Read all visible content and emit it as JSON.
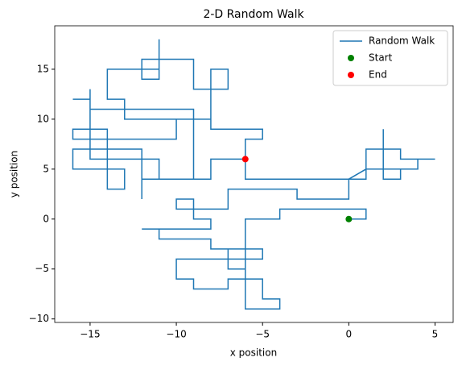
{
  "chart_data": {
    "type": "line",
    "title": "2-D Random Walk",
    "xlabel": "x position",
    "ylabel": "y position",
    "xlim": [
      -17.05,
      6.05
    ],
    "ylim": [
      -10.35,
      19.35
    ],
    "xticks": [
      {
        "value": -15,
        "label": "−15"
      },
      {
        "value": -10,
        "label": "−10"
      },
      {
        "value": -5,
        "label": "−5"
      },
      0,
      5
    ],
    "yticks": [
      {
        "value": -10,
        "label": "−10"
      },
      {
        "value": -5,
        "label": "−5"
      },
      0,
      5,
      10,
      15
    ],
    "legend": "upper right",
    "series": [
      {
        "name": "Random Walk",
        "color": "#1f77b4",
        "style": "line",
        "x": [
          0,
          1,
          1,
          -4,
          -4,
          -6,
          -6,
          -7,
          -7,
          -6,
          -6,
          -4,
          -4,
          -5,
          -5,
          -7,
          -7,
          -9,
          -9,
          -10,
          -10,
          -5,
          -5,
          -8,
          -8,
          -11,
          -11,
          -12,
          -8,
          -8,
          -9,
          -9,
          -10,
          -10,
          -7,
          -7,
          -3,
          -3,
          0,
          0,
          1,
          1,
          3,
          3,
          5,
          4,
          4,
          2,
          2,
          2,
          3,
          3,
          1,
          0,
          -6,
          -6,
          -5,
          -5,
          -8,
          -8,
          -13,
          -13,
          -14,
          -14,
          -11,
          -11,
          -11,
          -12,
          -12,
          -9,
          -9,
          -7,
          -7,
          -8,
          -8,
          -10,
          -10,
          -16,
          -16,
          -14,
          -14,
          -13,
          -13,
          -16,
          -16,
          -12,
          -12,
          -12,
          -9,
          -9,
          -15,
          -15,
          -15,
          -16,
          -15,
          -15,
          -11,
          -11,
          -8,
          -8,
          -6
        ],
        "y": [
          0,
          0,
          1,
          1,
          0,
          0,
          -5,
          -5,
          -3,
          -3,
          -9,
          -9,
          -8,
          -8,
          -6,
          -6,
          -7,
          -7,
          -6,
          -6,
          -4,
          -4,
          -3,
          -3,
          -2,
          -2,
          -1,
          -1,
          -1,
          0,
          0,
          2,
          2,
          1,
          1,
          3,
          3,
          2,
          2,
          4,
          4,
          7,
          7,
          6,
          6,
          6,
          5,
          5,
          9,
          4,
          4,
          5,
          5,
          4,
          4,
          8,
          8,
          9,
          9,
          10,
          10,
          12,
          12,
          15,
          15,
          18,
          14,
          14,
          16,
          16,
          13,
          13,
          15,
          15,
          10,
          10,
          8,
          8,
          9,
          9,
          3,
          3,
          5,
          5,
          7,
          7,
          2,
          4,
          4,
          11,
          11,
          13,
          12,
          12,
          12,
          6,
          6,
          4,
          4,
          6,
          6
        ]
      },
      {
        "name": "Start",
        "color": "green",
        "style": "marker",
        "x": [
          0
        ],
        "y": [
          0
        ]
      },
      {
        "name": "End",
        "color": "red",
        "style": "marker",
        "x": [
          -6
        ],
        "y": [
          6
        ]
      }
    ]
  }
}
